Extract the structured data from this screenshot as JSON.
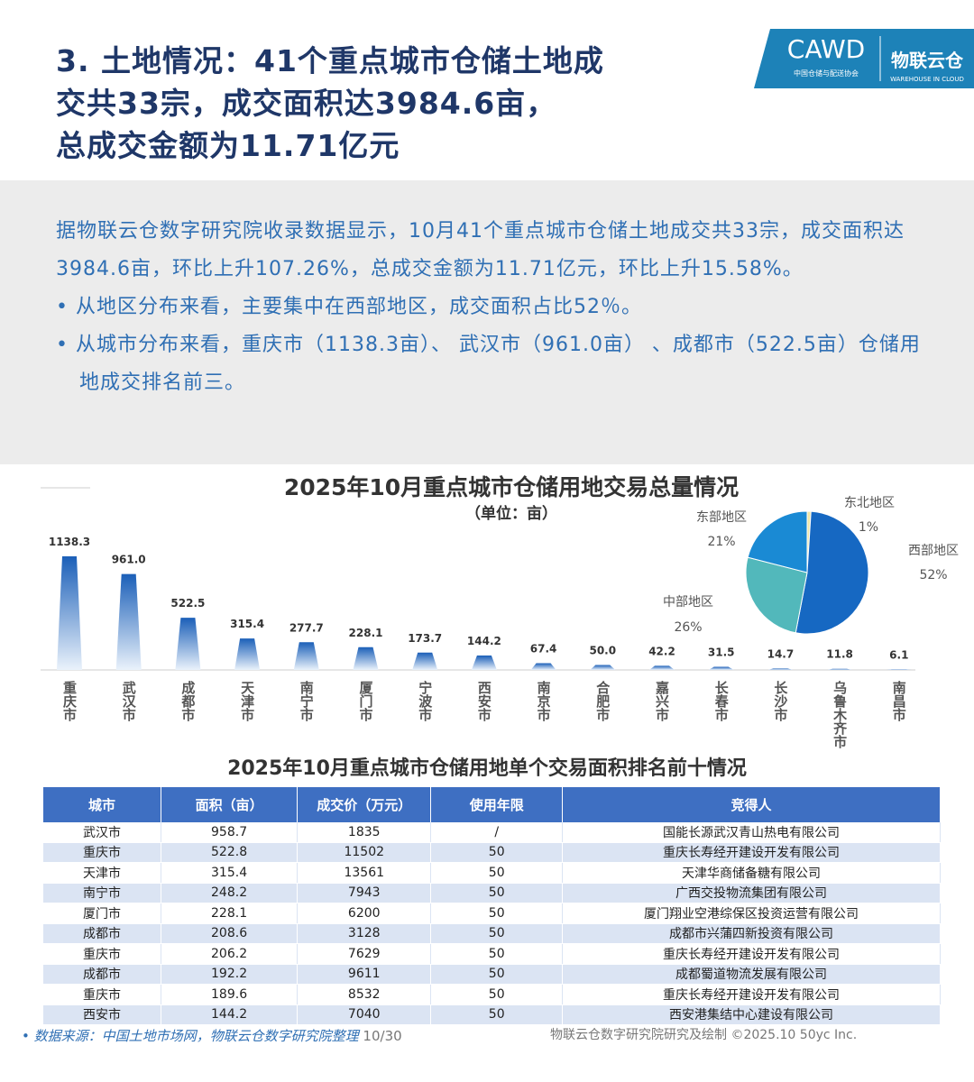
{
  "header": {
    "title_lines": [
      "3. 土地情况：41个重点城市仓储土地成",
      "交共33宗，成交面积达3984.6亩，",
      "总成交金额为11.71亿元"
    ],
    "logo": "CAWD",
    "logo_caption": "中国仓储与配送协会",
    "brand": "物联云仓",
    "brand_caption": "WAREHOUSE IN CLOUD"
  },
  "summary": {
    "paragraph": "据物联云仓数字研究院收录数据显示，10月41个重点城市仓储土地成交共33宗，成交面积达3984.6亩，环比上升107.26%，总成交金额为11.71亿元，环比上升15.58%。",
    "bullets": [
      "从地区分布来看，主要集中在西部地区，成交面积占比52％。",
      "从城市分布来看，重庆市（1138.3亩）、 武汉市（961.0亩） 、成都市（522.5亩）仓储用地成交排名前三。"
    ]
  },
  "chart_data": [
    {
      "type": "bar",
      "title": "2025年10月重点城市仓储用地交易总量情况",
      "subtitle": "（单位：亩）",
      "color": "#1b5fb8",
      "categories": [
        "重庆市",
        "武汉市",
        "成都市",
        "天津市",
        "南宁市",
        "厦门市",
        "宁波市",
        "西安市",
        "南京市",
        "合肥市",
        "嘉兴市",
        "长春市",
        "长沙市",
        "乌鲁木齐市",
        "南昌市"
      ],
      "values": [
        1138.3,
        961,
        522.5,
        315.4,
        277.7,
        228.1,
        173.7,
        144.2,
        67.4,
        50,
        42.2,
        31.5,
        14.7,
        11.8,
        6.1
      ],
      "value_labels": [
        "1138.3",
        "961.0",
        "522.5",
        "315.4",
        "277.7",
        "228.1",
        "173.7",
        "144.2",
        "67.4",
        "50.0",
        "42.2",
        "31.5",
        "14.7",
        "11.8",
        "6.1"
      ]
    },
    {
      "type": "pie",
      "categories": [
        "东北地区",
        "西部地区",
        "中部地区",
        "东部地区"
      ],
      "values": [
        1,
        52,
        26,
        21
      ],
      "value_labels": [
        "1%",
        "52%",
        "26%",
        "21%"
      ],
      "colors": [
        "#efe7a6",
        "#1668c2",
        "#52b8bb",
        "#1a8ad4"
      ]
    }
  ],
  "table": {
    "title": "2025年10月重点城市仓储用地单个交易面积排名前十情况",
    "columns": [
      "城市",
      "面积（亩）",
      "成交价（万元）",
      "使用年限",
      "竞得人"
    ],
    "rows": [
      [
        "武汉市",
        "958.7",
        "1835",
        "/",
        "国能长源武汉青山热电有限公司"
      ],
      [
        "重庆市",
        "522.8",
        "11502",
        "50",
        "重庆长寿经开建设开发有限公司"
      ],
      [
        "天津市",
        "315.4",
        "13561",
        "50",
        "天津华商储备糖有限公司"
      ],
      [
        "南宁市",
        "248.2",
        "7943",
        "50",
        "广西交投物流集团有限公司"
      ],
      [
        "厦门市",
        "228.1",
        "6200",
        "50",
        "厦门翔业空港综保区投资运营有限公司"
      ],
      [
        "成都市",
        "208.6",
        "3128",
        "50",
        "成都市兴蒲四新投资有限公司"
      ],
      [
        "重庆市",
        "206.2",
        "7629",
        "50",
        "重庆长寿经开建设开发有限公司"
      ],
      [
        "成都市",
        "192.2",
        "9611",
        "50",
        "成都蜀道物流发展有限公司"
      ],
      [
        "重庆市",
        "189.6",
        "8532",
        "50",
        "重庆长寿经开建设开发有限公司"
      ],
      [
        "西安市",
        "144.2",
        "7040",
        "50",
        "西安港集结中心建设有限公司"
      ]
    ]
  },
  "footer": {
    "source": "数据来源：中国土地市场网，物联云仓数字研究院整理",
    "page": "10/30",
    "credit": "物联云仓数字研究院研究及绘制 ©2025.10 50yc Inc."
  }
}
